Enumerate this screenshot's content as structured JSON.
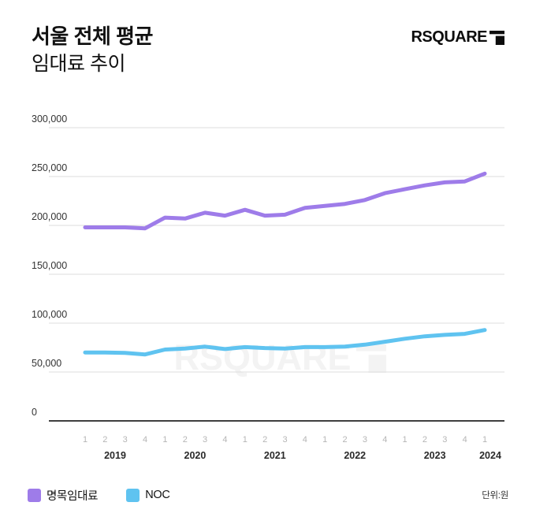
{
  "header": {
    "title_line1": "서울 전체 평균",
    "title_line2": "임대료 추이",
    "logo_text": "RSQUARE"
  },
  "watermark": {
    "text": "RSQUARE"
  },
  "legend": {
    "items": [
      {
        "label": "명목임대료",
        "color": "#9e7ce9"
      },
      {
        "label": "NOC",
        "color": "#5fc3f0"
      }
    ],
    "unit_note": "단위:원"
  },
  "chart_data": {
    "type": "line",
    "title": "서울 전체 평균 임대료 추이",
    "xlabel": "",
    "ylabel": "원",
    "ylim": [
      0,
      300000
    ],
    "yticks": [
      0,
      50000,
      100000,
      150000,
      200000,
      250000,
      300000
    ],
    "grid": true,
    "legend_position": "bottom-left",
    "x_quarter_labels": [
      "1",
      "2",
      "3",
      "4",
      "1",
      "2",
      "3",
      "4",
      "1",
      "2",
      "3",
      "4",
      "1",
      "2",
      "3",
      "4",
      "1",
      "2",
      "3",
      "4",
      "1"
    ],
    "year_groups": [
      {
        "label": "2019",
        "quarters": 4
      },
      {
        "label": "2020",
        "quarters": 4
      },
      {
        "label": "2021",
        "quarters": 4
      },
      {
        "label": "2022",
        "quarters": 4
      },
      {
        "label": "2023",
        "quarters": 4
      },
      {
        "label": "2024",
        "quarters": 1
      }
    ],
    "series": [
      {
        "name": "명목임대료",
        "color": "#9e7ce9",
        "values": [
          198000,
          198000,
          198000,
          197000,
          208000,
          207000,
          213000,
          210000,
          216000,
          210000,
          211000,
          218000,
          220000,
          222000,
          226000,
          233000,
          237000,
          241000,
          244000,
          245000,
          253000
        ]
      },
      {
        "name": "NOC",
        "color": "#5fc3f0",
        "values": [
          70000,
          70000,
          69500,
          68000,
          73000,
          74000,
          76000,
          73500,
          75500,
          74500,
          74000,
          75500,
          75500,
          76000,
          78000,
          81000,
          84000,
          86500,
          88000,
          89000,
          93000
        ]
      }
    ],
    "colors": {
      "gridline": "#dcdcdc",
      "baseline": "#3f3f3f",
      "ytick_label": "#333333",
      "quarter_label": "#b5b5b5",
      "year_label": "#2a2a2a"
    }
  }
}
